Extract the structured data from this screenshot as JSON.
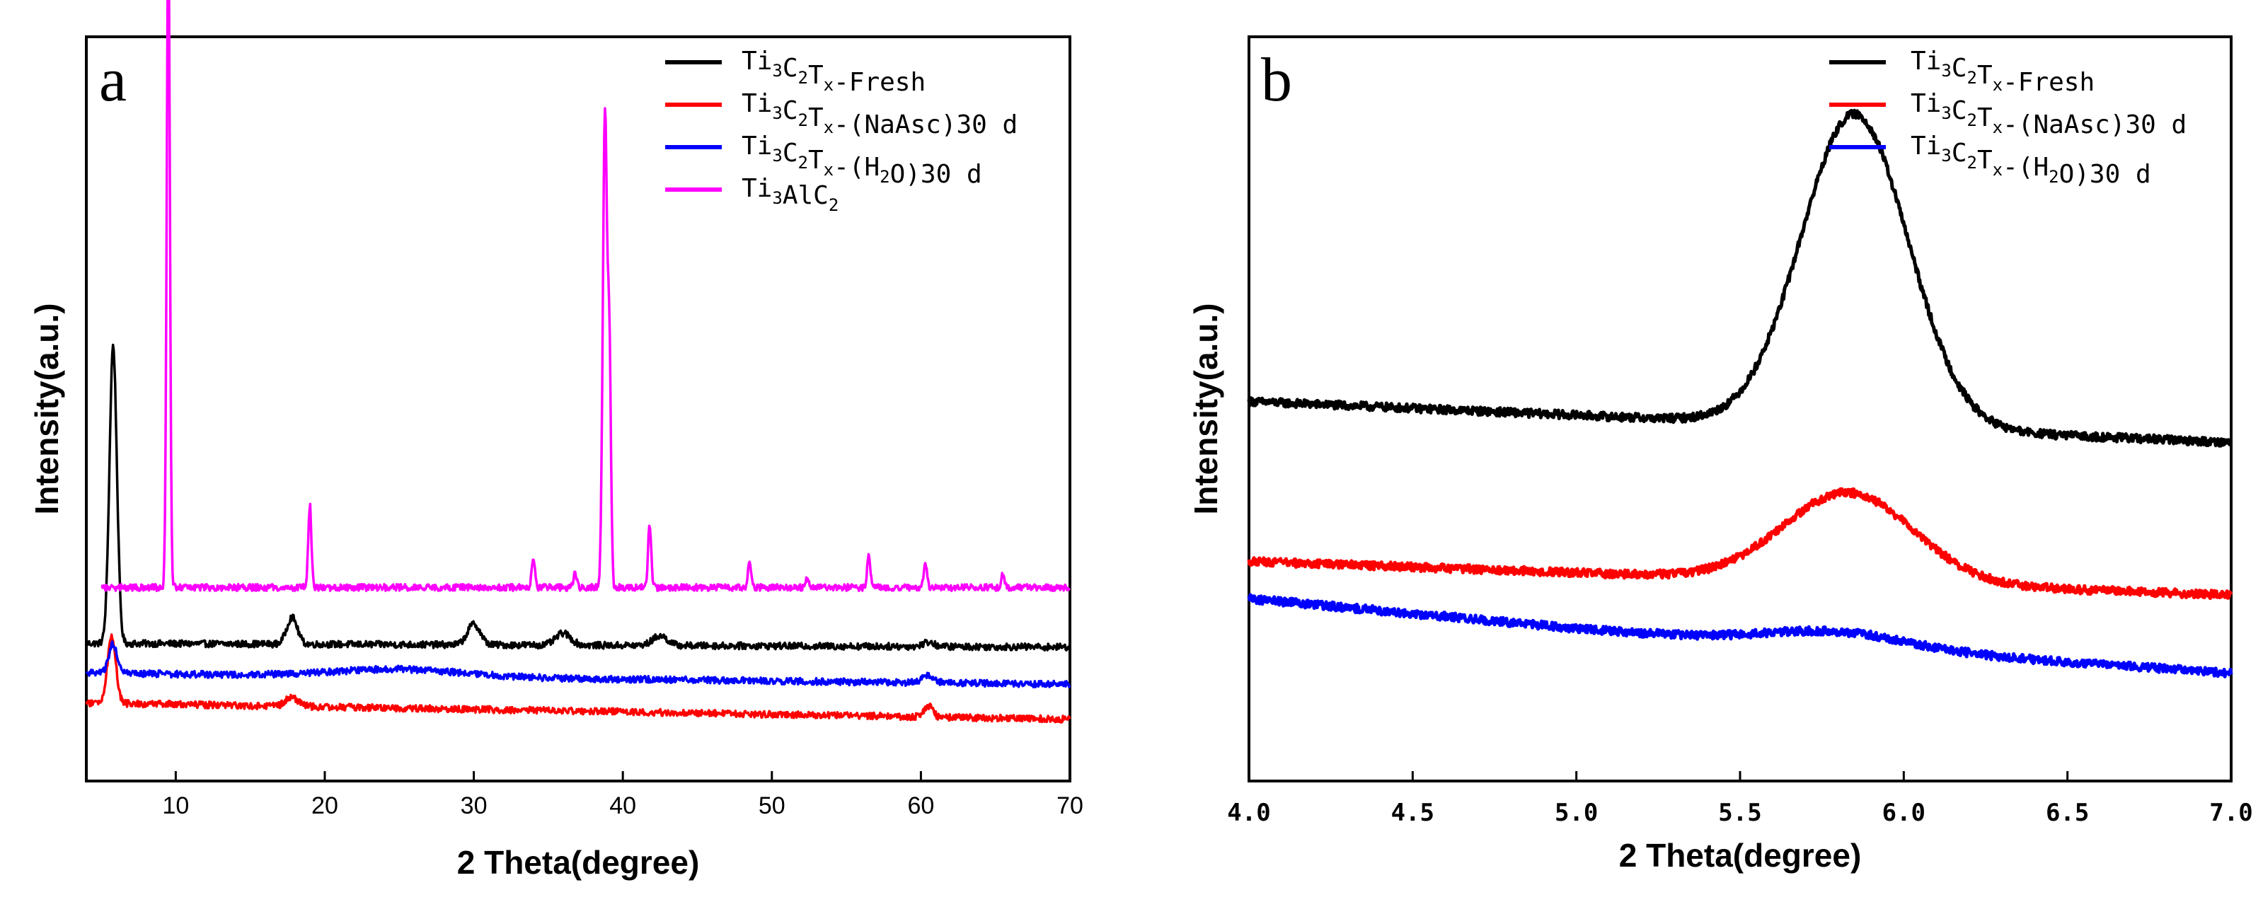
{
  "chart_data": [
    {
      "type": "line",
      "panel": "a",
      "xlabel": "2 Theta(degree)",
      "ylabel": "Intensity(a.u.)",
      "xlim": [
        4,
        70
      ],
      "ylim": [
        0,
        100
      ],
      "xticks": [
        "10",
        "20",
        "30",
        "40",
        "50",
        "60",
        "70"
      ],
      "legend_position": "top-right",
      "series": [
        {
          "key": "fresh",
          "name": "Ti3C2Tx-Fresh",
          "label_parts": [
            [
              "Ti",
              ""
            ],
            [
              "3",
              "sub"
            ],
            [
              "C",
              ""
            ],
            [
              "2",
              "sub"
            ],
            [
              "T",
              ""
            ],
            [
              "x",
              "sub"
            ],
            [
              "-Fresh",
              ""
            ]
          ],
          "color": "#000000",
          "baseline": 18.5,
          "end_value": 18.0,
          "peaks": [
            [
              5.8,
              40.0,
              0.35
            ],
            [
              17.8,
              3.6,
              0.5
            ],
            [
              30.0,
              2.8,
              0.6
            ],
            [
              36.0,
              1.6,
              0.7
            ],
            [
              42.5,
              1.3,
              0.7
            ],
            [
              60.5,
              0.6,
              0.5
            ]
          ]
        },
        {
          "key": "naasc",
          "name": "Ti3C2Tx-(NaAsc)30 d",
          "label_parts": [
            [
              "Ti",
              ""
            ],
            [
              "3",
              "sub"
            ],
            [
              "C",
              ""
            ],
            [
              "2",
              "sub"
            ],
            [
              "T",
              ""
            ],
            [
              "x",
              "sub"
            ],
            [
              "-(NaAsc)30 d",
              ""
            ]
          ],
          "color": "#ff0000",
          "baseline": 10.5,
          "end_value": 8.3,
          "peaks": [
            [
              5.7,
              9.0,
              0.4
            ],
            [
              17.8,
              1.2,
              0.6
            ],
            [
              60.5,
              1.5,
              0.4
            ]
          ]
        },
        {
          "key": "h2o",
          "name": "Ti3C2Tx-(H2O)30 d",
          "label_parts": [
            [
              "Ti",
              ""
            ],
            [
              "3",
              "sub"
            ],
            [
              "C",
              ""
            ],
            [
              "2",
              "sub"
            ],
            [
              "T",
              ""
            ],
            [
              "x",
              "sub"
            ],
            [
              "-(H",
              ""
            ],
            [
              "2",
              "sub"
            ],
            [
              "O)30 d",
              ""
            ]
          ],
          "color": "#0000ff",
          "baseline": 14.5,
          "end_value": 13.0,
          "peaks": [
            [
              5.8,
              4.0,
              0.4
            ],
            [
              25.0,
              1.0,
              6.0
            ],
            [
              60.5,
              1.0,
              0.5
            ]
          ]
        },
        {
          "key": "max",
          "name": "Ti3AlC2",
          "label_parts": [
            [
              "Ti",
              ""
            ],
            [
              "3",
              "sub"
            ],
            [
              "AlC",
              ""
            ],
            [
              "2",
              "sub"
            ]
          ],
          "color": "#ff00ff",
          "start_x": 5.0,
          "baseline": 26.0,
          "end_value": 26.0,
          "peaks": [
            [
              9.5,
              89.0,
              0.15
            ],
            [
              19.0,
              11.0,
              0.15
            ],
            [
              34.0,
              4.0,
              0.15
            ],
            [
              36.8,
              2.0,
              0.15
            ],
            [
              38.8,
              64.0,
              0.2
            ],
            [
              39.1,
              30.0,
              0.15
            ],
            [
              41.8,
              8.5,
              0.15
            ],
            [
              48.5,
              3.2,
              0.15
            ],
            [
              52.4,
              1.3,
              0.15
            ],
            [
              56.5,
              4.4,
              0.15
            ],
            [
              60.3,
              3.3,
              0.15
            ],
            [
              65.5,
              1.7,
              0.15
            ]
          ]
        }
      ]
    },
    {
      "type": "line",
      "panel": "b",
      "xlabel": "2 Theta(degree)",
      "ylabel": "Intensity(a.u.)",
      "xlim": [
        4.0,
        7.0
      ],
      "ylim": [
        0,
        100
      ],
      "xticks": [
        "4.0",
        "4.5",
        "5.0",
        "5.5",
        "6.0",
        "6.5",
        "7.0"
      ],
      "legend_position": "top-right",
      "series": [
        {
          "key": "fresh",
          "name": "Ti3C2Tx-Fresh",
          "label_parts": [
            [
              "Ti",
              ""
            ],
            [
              "3",
              "sub"
            ],
            [
              "C",
              ""
            ],
            [
              "2",
              "sub"
            ],
            [
              "T",
              ""
            ],
            [
              "x",
              "sub"
            ],
            [
              "-Fresh",
              ""
            ]
          ],
          "color": "#000000",
          "baseline": 51.0,
          "end_value": 45.5,
          "peaks": [
            [
              5.85,
              42.0,
              0.23
            ]
          ]
        },
        {
          "key": "naasc",
          "name": "Ti3C2Tx-(NaAsc)30 d",
          "label_parts": [
            [
              "Ti",
              ""
            ],
            [
              "3",
              "sub"
            ],
            [
              "C",
              ""
            ],
            [
              "2",
              "sub"
            ],
            [
              "T",
              ""
            ],
            [
              "x",
              "sub"
            ],
            [
              "-(NaAsc)30 d",
              ""
            ]
          ],
          "color": "#ff0000",
          "baseline": 29.5,
          "end_value": 25.0,
          "peaks": [
            [
              5.83,
              12.0,
              0.28
            ]
          ]
        },
        {
          "key": "h2o",
          "name": "Ti3C2Tx-(H2O)30 d",
          "label_parts": [
            [
              "Ti",
              ""
            ],
            [
              "3",
              "sub"
            ],
            [
              "C",
              ""
            ],
            [
              "2",
              "sub"
            ],
            [
              "T",
              ""
            ],
            [
              "x",
              "sub"
            ],
            [
              "-(H",
              ""
            ],
            [
              "2",
              "sub"
            ],
            [
              "O)30 d",
              ""
            ]
          ],
          "color": "#0000ff",
          "start_value": 24.5,
          "baseline": 20.5,
          "end_value": 14.5,
          "peaks": [
            [
              5.8,
              2.0,
              0.3
            ]
          ]
        }
      ]
    }
  ]
}
